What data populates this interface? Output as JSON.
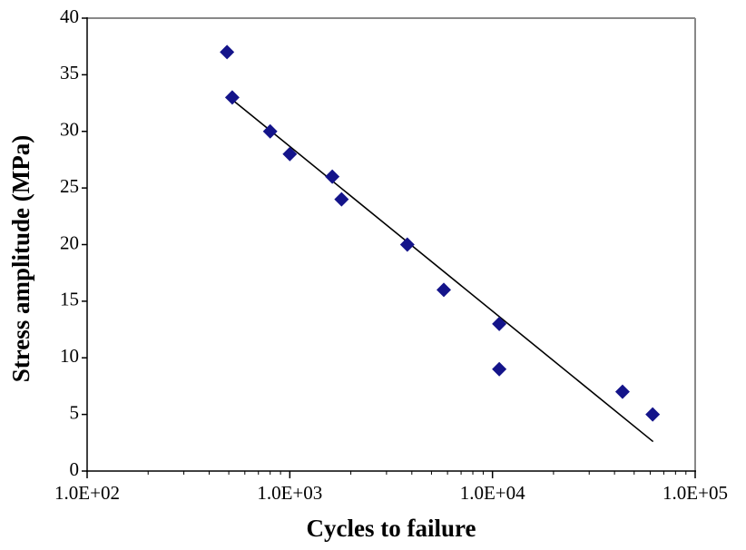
{
  "chart_data": {
    "type": "scatter",
    "x_label": "Cycles to failure",
    "y_label": "Stress amplitude (MPa)",
    "x_scale": "log",
    "xlim": [
      100,
      100000
    ],
    "ylim": [
      0,
      40
    ],
    "xticks": [
      {
        "value": 100,
        "label": "1.0E+02"
      },
      {
        "value": 1000,
        "label": "1.0E+03"
      },
      {
        "value": 10000,
        "label": "1.0E+04"
      },
      {
        "value": 100000,
        "label": "1.0E+05"
      }
    ],
    "yticks": [
      0,
      5,
      10,
      15,
      20,
      25,
      30,
      35,
      40
    ],
    "grid": false,
    "series": [
      {
        "type": "scatter",
        "marker": "diamond",
        "color": "#14148a",
        "x": [
          490,
          520,
          800,
          1000,
          1620,
          1800,
          3800,
          5750,
          10800,
          10800,
          43800,
          61700
        ],
        "values": [
          37,
          33,
          30,
          28,
          26,
          24,
          20,
          16,
          13,
          9,
          7,
          5
        ]
      },
      {
        "type": "line",
        "color": "#000000",
        "x": [
          520,
          62000
        ],
        "values": [
          32.8,
          2.6
        ]
      }
    ]
  }
}
